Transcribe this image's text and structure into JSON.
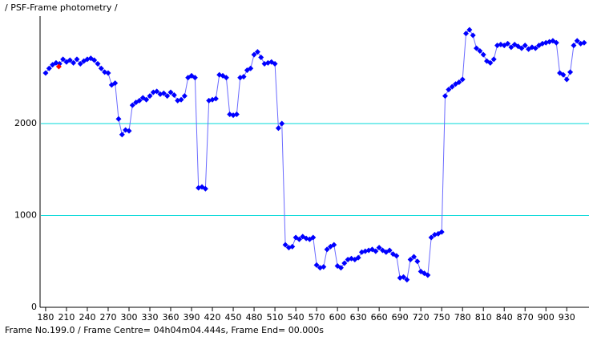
{
  "chart_data": {
    "type": "line",
    "title": "/ PSF-Frame photometry /",
    "footer": "Frame No.199.0 / Frame Centre= 04h04m04.444s,  Frame End= 00.000s",
    "x": [
      180,
      185,
      190,
      195,
      200,
      205,
      210,
      215,
      220,
      225,
      230,
      235,
      240,
      245,
      250,
      255,
      260,
      265,
      270,
      275,
      280,
      285,
      290,
      295,
      300,
      305,
      310,
      315,
      320,
      325,
      330,
      335,
      340,
      345,
      350,
      355,
      360,
      365,
      370,
      375,
      380,
      385,
      390,
      395,
      400,
      405,
      410,
      415,
      420,
      425,
      430,
      435,
      440,
      445,
      450,
      455,
      460,
      465,
      470,
      475,
      480,
      485,
      490,
      495,
      500,
      505,
      510,
      515,
      520,
      525,
      530,
      535,
      540,
      545,
      550,
      555,
      560,
      565,
      570,
      575,
      580,
      585,
      590,
      595,
      600,
      605,
      610,
      615,
      620,
      625,
      630,
      635,
      640,
      645,
      650,
      655,
      660,
      665,
      670,
      675,
      680,
      685,
      690,
      695,
      700,
      705,
      710,
      715,
      720,
      725,
      730,
      735,
      740,
      745,
      750,
      755,
      760,
      765,
      770,
      775,
      780,
      785,
      790,
      795,
      800,
      805,
      810,
      815,
      820,
      825,
      830,
      835,
      840,
      845,
      850,
      855,
      860,
      865,
      870,
      875,
      880,
      885,
      890,
      895,
      900,
      905,
      910,
      915,
      920,
      925,
      930,
      935,
      940,
      945,
      950,
      955
    ],
    "series": [
      {
        "name": "photometry",
        "color": "#0000ff",
        "line_color": "#6a6aff",
        "values": [
          2550,
          2600,
          2640,
          2660,
          2650,
          2700,
          2670,
          2690,
          2660,
          2700,
          2650,
          2680,
          2700,
          2710,
          2690,
          2650,
          2600,
          2560,
          2550,
          2420,
          2440,
          2050,
          1880,
          1930,
          1920,
          2200,
          2230,
          2250,
          2280,
          2260,
          2300,
          2340,
          2350,
          2320,
          2330,
          2300,
          2340,
          2310,
          2250,
          2260,
          2300,
          2500,
          2520,
          2500,
          1300,
          1310,
          1290,
          2250,
          2260,
          2270,
          2530,
          2520,
          2500,
          2100,
          2090,
          2100,
          2500,
          2510,
          2580,
          2600,
          2750,
          2780,
          2720,
          2650,
          2660,
          2670,
          2650,
          1950,
          2000,
          680,
          650,
          660,
          760,
          740,
          770,
          750,
          740,
          760,
          460,
          430,
          440,
          630,
          660,
          680,
          450,
          430,
          480,
          520,
          530,
          520,
          540,
          600,
          610,
          620,
          630,
          610,
          650,
          620,
          600,
          620,
          580,
          560,
          320,
          330,
          300,
          520,
          550,
          500,
          390,
          370,
          350,
          760,
          790,
          800,
          820,
          2300,
          2370,
          2400,
          2430,
          2450,
          2480,
          2980,
          3020,
          2960,
          2820,
          2790,
          2750,
          2680,
          2660,
          2700,
          2850,
          2860,
          2850,
          2870,
          2830,
          2860,
          2840,
          2820,
          2850,
          2810,
          2830,
          2820,
          2850,
          2870,
          2880,
          2890,
          2900,
          2880,
          2550,
          2530,
          2480,
          2560,
          2850,
          2900,
          2870,
          2880
        ]
      }
    ],
    "highlight": {
      "x": 199,
      "value": 2620,
      "color": "#ff0000"
    },
    "xlim": [
      172,
      962
    ],
    "xticks": [
      180,
      210,
      240,
      270,
      300,
      330,
      360,
      390,
      420,
      450,
      480,
      510,
      540,
      570,
      600,
      630,
      660,
      690,
      720,
      750,
      780,
      810,
      840,
      870,
      900,
      930
    ],
    "ylim": [
      0,
      3170
    ],
    "yticks": [
      0,
      1000,
      2000
    ],
    "grid": true,
    "grid_color": "#00d8d8"
  }
}
